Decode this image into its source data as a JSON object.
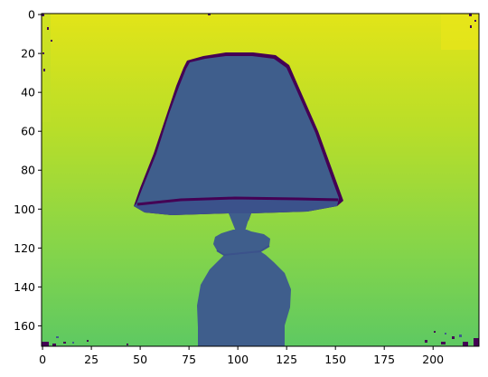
{
  "plot": {
    "type": "image",
    "colormap": "viridis",
    "image_width": 224,
    "image_height": 171,
    "x_ticks": [
      0,
      25,
      50,
      75,
      100,
      125,
      150,
      175,
      200
    ],
    "y_ticks": [
      0,
      20,
      40,
      60,
      80,
      100,
      120,
      140,
      160
    ],
    "xlim": [
      -0.5,
      223.5
    ],
    "ylim": [
      170.5,
      -0.5
    ],
    "background_colors": {
      "top": "#dfe319",
      "middle": "#a2da37",
      "bottom": "#63c961"
    },
    "object_colors": {
      "lamp_fill": "#3f5e8c",
      "lamp_edge": "#440154"
    },
    "content": "depth map of a table lamp"
  }
}
